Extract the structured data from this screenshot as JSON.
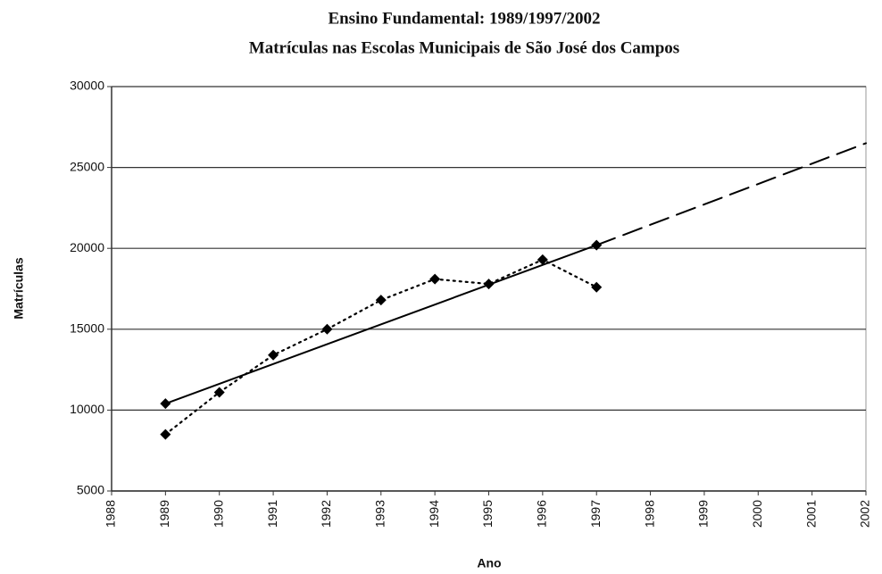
{
  "chart_data": {
    "type": "line",
    "title": "Ensino Fundamental: 1989/1997/2002",
    "subtitle": "Matrículas nas Escolas Municipais de São José dos Campos",
    "x_label": "Ano",
    "y_label": "Matrículas",
    "xlim": [
      1988,
      2002
    ],
    "xticks": [
      1988,
      1989,
      1990,
      1991,
      1992,
      1993,
      1994,
      1995,
      1996,
      1997,
      1998,
      1999,
      2000,
      2001,
      2002
    ],
    "ylim": [
      5000,
      30000
    ],
    "yticks": [
      5000,
      10000,
      15000,
      20000,
      25000,
      30000
    ],
    "grid": true,
    "series": [
      {
        "color": "#000000",
        "dash": "dotted",
        "marker": "diamond",
        "x": [
          1989,
          1990,
          1991,
          1992,
          1993,
          1994,
          1995,
          1996,
          1997
        ],
        "values": [
          8500,
          11100,
          13400,
          15000,
          16800,
          18100,
          17800,
          19300,
          17600
        ]
      },
      {
        "color": "#000000",
        "dash": "solid",
        "marker": "diamond",
        "x": [
          1989,
          1997
        ],
        "values": [
          10400,
          20200
        ]
      },
      {
        "color": "#000000",
        "dash": "dashed",
        "marker": "none",
        "x": [
          1997,
          2002
        ],
        "values": [
          20200,
          26500
        ]
      }
    ]
  }
}
